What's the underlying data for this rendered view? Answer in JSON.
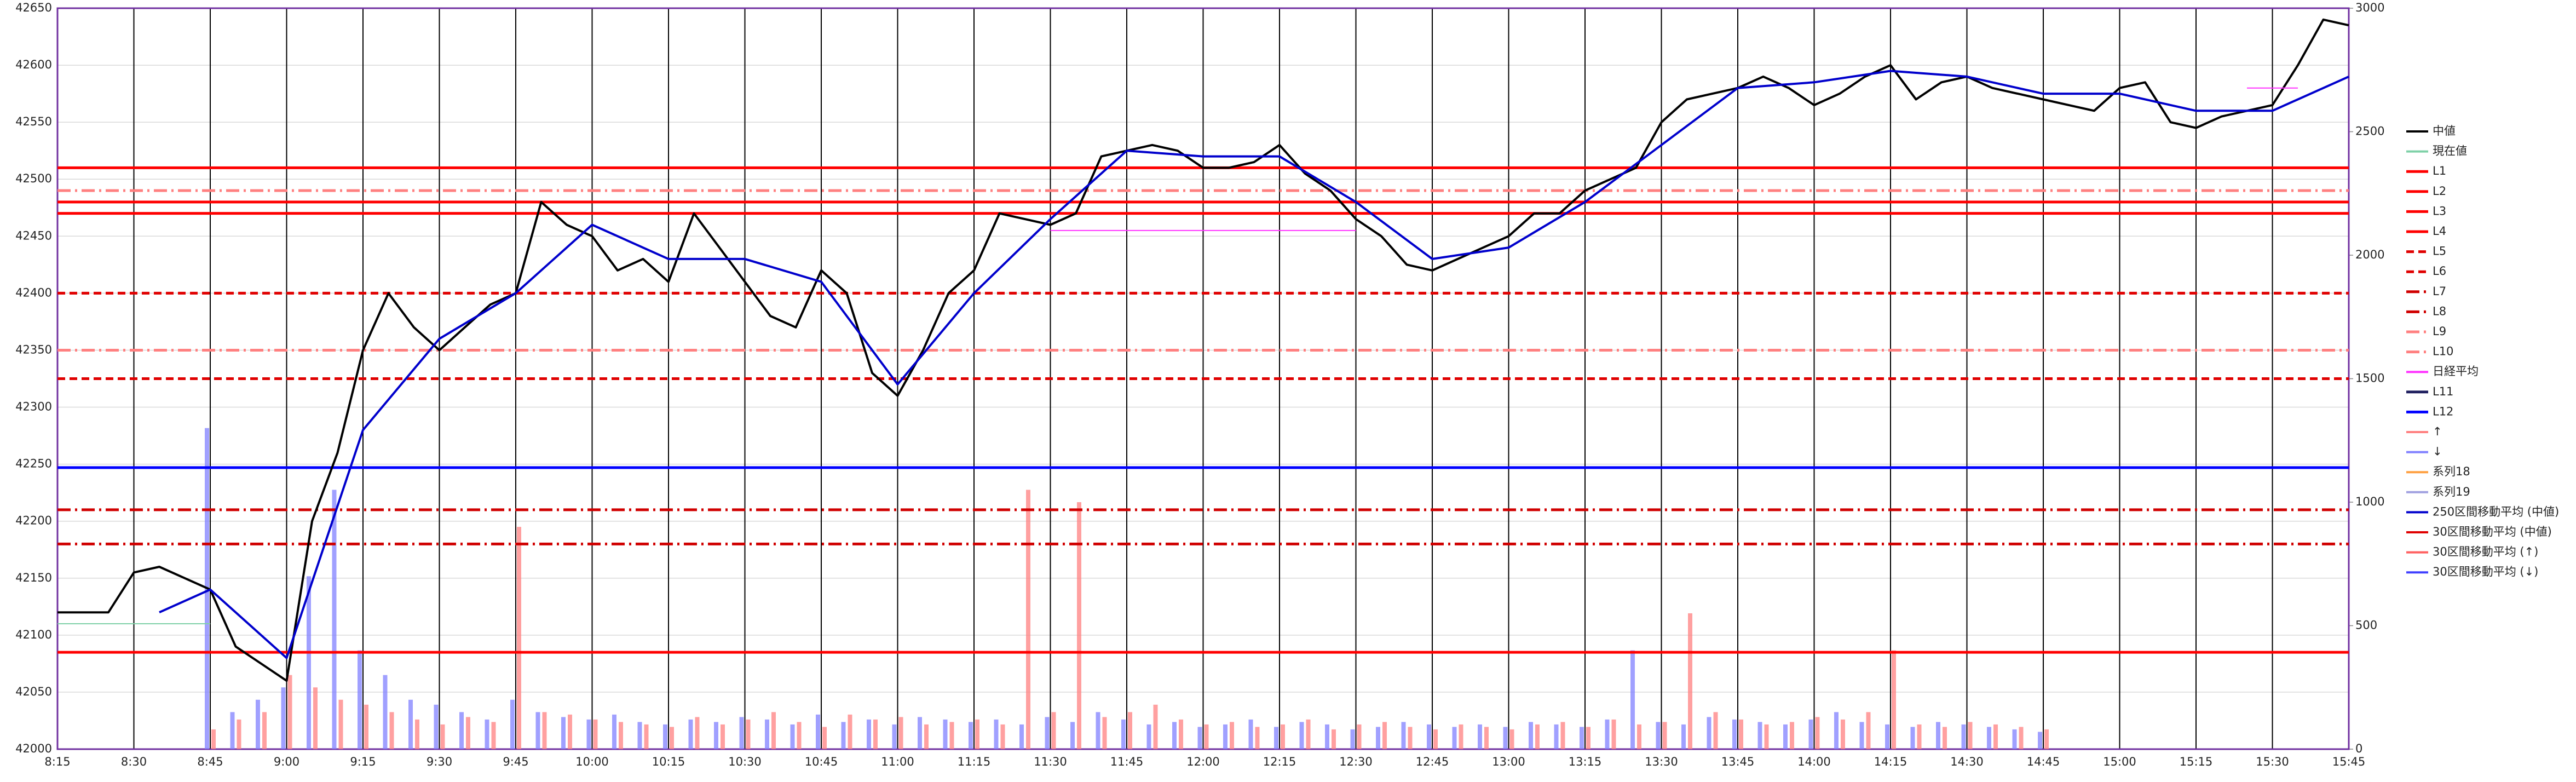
{
  "chart_data": {
    "type": "line",
    "xlim": [
      "8:15",
      "15:45"
    ],
    "xticks": [
      "8:15",
      "8:30",
      "8:45",
      "9:00",
      "9:15",
      "9:30",
      "9:45",
      "10:00",
      "10:15",
      "10:30",
      "10:45",
      "11:00",
      "11:15",
      "11:30",
      "11:45",
      "12:00",
      "12:15",
      "12:30",
      "12:45",
      "13:00",
      "13:15",
      "13:30",
      "13:45",
      "14:00",
      "14:15",
      "14:30",
      "14:45",
      "15:00",
      "15:15",
      "15:30",
      "15:45"
    ],
    "ylim": [
      42000,
      42650
    ],
    "yticks": [
      42000,
      42050,
      42100,
      42150,
      42200,
      42250,
      42300,
      42350,
      42400,
      42450,
      42500,
      42550,
      42600,
      42650
    ],
    "y2lim": [
      0,
      3000
    ],
    "y2ticks": [
      0,
      500,
      1000,
      1500,
      2000,
      2500,
      3000
    ],
    "grid": true,
    "legend": "right",
    "series": [
      {
        "name": "中値",
        "color": "#000000",
        "kind": "line",
        "width": 4,
        "x": [
          "8:15",
          "8:20",
          "8:25",
          "8:30",
          "8:35",
          "8:40",
          "8:45",
          "8:50",
          "8:55",
          "9:00",
          "9:05",
          "9:10",
          "9:15",
          "9:20",
          "9:25",
          "9:30",
          "9:35",
          "9:40",
          "9:45",
          "9:50",
          "9:55",
          "10:00",
          "10:05",
          "10:10",
          "10:15",
          "10:20",
          "10:25",
          "10:30",
          "10:35",
          "10:40",
          "10:45",
          "10:50",
          "10:55",
          "11:00",
          "11:05",
          "11:10",
          "11:15",
          "11:20",
          "11:25",
          "11:30",
          "11:35",
          "11:40",
          "11:45",
          "11:50",
          "11:55",
          "12:00",
          "12:05",
          "12:10",
          "12:15",
          "12:20",
          "12:25",
          "12:30",
          "12:35",
          "12:40",
          "12:45",
          "12:50",
          "12:55",
          "13:00",
          "13:05",
          "13:10",
          "13:15",
          "13:20",
          "13:25",
          "13:30",
          "13:35",
          "13:40",
          "13:45",
          "13:50",
          "13:55",
          "14:00",
          "14:05",
          "14:10",
          "14:15",
          "14:20",
          "14:25",
          "14:30",
          "14:35",
          "14:40",
          "14:45",
          "14:50",
          "14:55",
          "15:00",
          "15:05",
          "15:10",
          "15:15",
          "15:20",
          "15:25",
          "15:30",
          "15:35",
          "15:40",
          "15:45"
        ],
        "values": [
          42120,
          42120,
          42120,
          42155,
          42160,
          42150,
          42140,
          42090,
          42075,
          42060,
          42200,
          42260,
          42350,
          42400,
          42370,
          42350,
          42370,
          42390,
          42400,
          42480,
          42460,
          42450,
          42420,
          42430,
          42410,
          42470,
          42440,
          42410,
          42380,
          42370,
          42420,
          42400,
          42330,
          42310,
          42350,
          42400,
          42420,
          42470,
          42465,
          42460,
          42470,
          42520,
          42525,
          42530,
          42525,
          42510,
          42510,
          42515,
          42530,
          42505,
          42490,
          42465,
          42450,
          42425,
          42420,
          42430,
          42440,
          42450,
          42470,
          42470,
          42490,
          42500,
          42510,
          42550,
          42570,
          42575,
          42580,
          42590,
          42580,
          42565,
          42575,
          42590,
          42600,
          42570,
          42585,
          42590,
          42580,
          42575,
          42570,
          42565,
          42560,
          42580,
          42585,
          42550,
          42545,
          42555,
          42560,
          42565,
          42600,
          42640,
          42635
        ]
      },
      {
        "name": "現在値",
        "color": "#7fd1a8",
        "kind": "line",
        "width": 2,
        "x": [
          "8:15",
          "8:45"
        ],
        "values": [
          42110,
          42110
        ]
      },
      {
        "name": "L1",
        "color": "#ff0000",
        "kind": "level",
        "dash": "solid",
        "level": 42510
      },
      {
        "name": "L2",
        "color": "#ff0000",
        "kind": "level",
        "dash": "solid",
        "level": 42480
      },
      {
        "name": "L3",
        "color": "#ff0000",
        "kind": "level",
        "dash": "solid",
        "level": 42470
      },
      {
        "name": "L4",
        "color": "#ff0000",
        "kind": "level",
        "dash": "solid",
        "level": 42085
      },
      {
        "name": "L5",
        "color": "#e00000",
        "kind": "level",
        "dash": "dash",
        "level": 42400
      },
      {
        "name": "L6",
        "color": "#e00000",
        "kind": "level",
        "dash": "dash",
        "level": 42325
      },
      {
        "name": "L7",
        "color": "#d00000",
        "kind": "level",
        "dash": "dashdot",
        "level": 42210
      },
      {
        "name": "L8",
        "color": "#d00000",
        "kind": "level",
        "dash": "dashdot",
        "level": 42180
      },
      {
        "name": "L9",
        "color": "#ff8080",
        "kind": "level",
        "dash": "dashdot",
        "level": 42490
      },
      {
        "name": "L10",
        "color": "#ff8080",
        "kind": "level",
        "dash": "dashdot",
        "level": 42350
      },
      {
        "name": "日経平均",
        "color": "#ff33ff",
        "kind": "line",
        "width": 2,
        "x": [
          "11:30",
          "12:30",
          "12:35",
          "15:25",
          "15:35"
        ],
        "values": [
          42455,
          42455,
          null,
          42580,
          42580
        ]
      },
      {
        "name": "L11",
        "color": "#1f1f5f",
        "kind": "level",
        "dash": "solid"
      },
      {
        "name": "L12",
        "color": "#0000ff",
        "kind": "level",
        "dash": "solid",
        "level": 42247
      },
      {
        "name": "↑",
        "color": "#ff8080",
        "kind": "bar",
        "axis": "y2",
        "x": [
          "8:45",
          "8:50",
          "8:55",
          "9:00",
          "9:05",
          "9:10",
          "9:15",
          "9:20",
          "9:25",
          "9:30",
          "9:35",
          "9:40",
          "9:45",
          "9:50",
          "9:55",
          "10:00",
          "10:05",
          "10:10",
          "10:15",
          "10:20",
          "10:25",
          "10:30",
          "10:35",
          "10:40",
          "10:45",
          "10:50",
          "10:55",
          "11:00",
          "11:05",
          "11:10",
          "11:15",
          "11:20",
          "11:25",
          "11:30",
          "11:35",
          "11:40",
          "11:45",
          "11:50",
          "11:55",
          "12:00",
          "12:05",
          "12:10",
          "12:15",
          "12:20",
          "12:25",
          "12:30",
          "12:35",
          "12:40",
          "12:45",
          "12:50",
          "12:55",
          "13:00",
          "13:05",
          "13:10",
          "13:15",
          "13:20",
          "13:25",
          "13:30",
          "13:35",
          "13:40",
          "13:45",
          "13:50",
          "13:55",
          "14:00",
          "14:05",
          "14:10",
          "14:15",
          "14:20",
          "14:25",
          "14:30",
          "14:35",
          "14:40",
          "14:45"
        ],
        "values": [
          80,
          120,
          150,
          300,
          250,
          200,
          180,
          150,
          120,
          100,
          130,
          110,
          900,
          150,
          140,
          120,
          110,
          100,
          90,
          130,
          100,
          120,
          150,
          110,
          90,
          140,
          120,
          130,
          100,
          110,
          120,
          100,
          1050,
          150,
          1000,
          130,
          150,
          180,
          120,
          100,
          110,
          90,
          100,
          120,
          80,
          100,
          110,
          90,
          80,
          100,
          90,
          80,
          100,
          110,
          90,
          120,
          100,
          110,
          550,
          150,
          120,
          100,
          110,
          130,
          120,
          150,
          400,
          100,
          90,
          110,
          100,
          90,
          80
        ]
      },
      {
        "name": "↓",
        "color": "#8080ff",
        "kind": "bar",
        "axis": "y2",
        "x": [
          "8:45",
          "8:50",
          "8:55",
          "9:00",
          "9:05",
          "9:10",
          "9:15",
          "9:20",
          "9:25",
          "9:30",
          "9:35",
          "9:40",
          "9:45",
          "9:50",
          "9:55",
          "10:00",
          "10:05",
          "10:10",
          "10:15",
          "10:20",
          "10:25",
          "10:30",
          "10:35",
          "10:40",
          "10:45",
          "10:50",
          "10:55",
          "11:00",
          "11:05",
          "11:10",
          "11:15",
          "11:20",
          "11:25",
          "11:30",
          "11:35",
          "11:40",
          "11:45",
          "11:50",
          "11:55",
          "12:00",
          "12:05",
          "12:10",
          "12:15",
          "12:20",
          "12:25",
          "12:30",
          "12:35",
          "12:40",
          "12:45",
          "12:50",
          "12:55",
          "13:00",
          "13:05",
          "13:10",
          "13:15",
          "13:20",
          "13:25",
          "13:30",
          "13:35",
          "13:40",
          "13:45",
          "13:50",
          "13:55",
          "14:00",
          "14:05",
          "14:10",
          "14:15",
          "14:20",
          "14:25",
          "14:30",
          "14:35",
          "14:40",
          "14:45"
        ],
        "values": [
          1300,
          150,
          200,
          250,
          700,
          1050,
          400,
          300,
          200,
          180,
          150,
          120,
          200,
          150,
          130,
          120,
          140,
          110,
          100,
          120,
          110,
          130,
          120,
          100,
          140,
          110,
          120,
          100,
          130,
          120,
          110,
          120,
          100,
          130,
          110,
          150,
          120,
          100,
          110,
          90,
          100,
          120,
          90,
          110,
          100,
          80,
          90,
          110,
          100,
          90,
          100,
          90,
          110,
          100,
          90,
          120,
          400,
          110,
          100,
          130,
          120,
          110,
          100,
          120,
          150,
          110,
          100,
          90,
          110,
          100,
          90,
          80,
          70
        ]
      },
      {
        "name": "系列18",
        "color": "#ffa040",
        "kind": "line"
      },
      {
        "name": "系列19",
        "color": "#a0a0e0",
        "kind": "line"
      },
      {
        "name": "250区間移動平均 (中値)",
        "color": "#0000cc",
        "kind": "line",
        "width": 4,
        "x": [
          "8:35",
          "8:45",
          "9:00",
          "9:15",
          "9:30",
          "9:45",
          "10:00",
          "10:15",
          "10:30",
          "10:45",
          "11:00",
          "11:15",
          "11:30",
          "11:45",
          "12:00",
          "12:15",
          "12:30",
          "12:45",
          "13:00",
          "13:15",
          "13:30",
          "13:45",
          "14:00",
          "14:15",
          "14:30",
          "14:45",
          "15:00",
          "15:15",
          "15:30",
          "15:45"
        ],
        "values": [
          42120,
          42140,
          42080,
          42280,
          42360,
          42400,
          42460,
          42430,
          42430,
          42410,
          42320,
          42400,
          42465,
          42525,
          42520,
          42520,
          42480,
          42430,
          42440,
          42480,
          42530,
          42580,
          42585,
          42595,
          42590,
          42575,
          42575,
          42560,
          42560,
          42590
        ]
      },
      {
        "name": "30区間移動平均 (中値)",
        "color": "#e00000",
        "kind": "line"
      },
      {
        "name": "30区間移動平均 (↑)",
        "color": "#ff6060",
        "kind": "line"
      },
      {
        "name": "30区間移動平均 (↓)",
        "color": "#4040ff",
        "kind": "line"
      }
    ]
  }
}
